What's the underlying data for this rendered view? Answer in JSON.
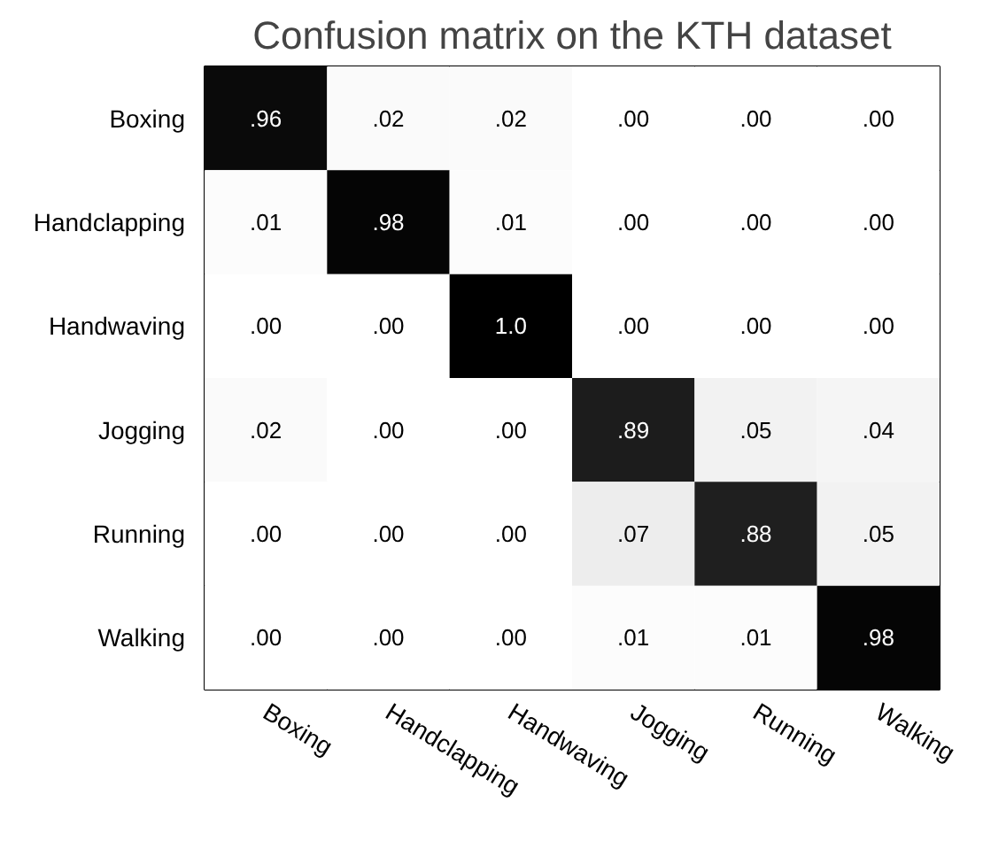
{
  "chart_data": {
    "type": "heatmap",
    "title": "Confusion matrix on the KTH dataset",
    "categories": [
      "Boxing",
      "Handclapping",
      "Handwaving",
      "Jogging",
      "Running",
      "Walking"
    ],
    "y_categories": [
      "Boxing",
      "Handclapping",
      "Handwaving",
      "Jogging",
      "Running",
      "Walking"
    ],
    "cells": [
      [
        0.96,
        0.02,
        0.02,
        0.0,
        0.0,
        0.0
      ],
      [
        0.01,
        0.98,
        0.01,
        0.0,
        0.0,
        0.0
      ],
      [
        0.0,
        0.0,
        1.0,
        0.0,
        0.0,
        0.0
      ],
      [
        0.02,
        0.0,
        0.0,
        0.89,
        0.05,
        0.04
      ],
      [
        0.0,
        0.0,
        0.0,
        0.07,
        0.88,
        0.05
      ],
      [
        0.0,
        0.0,
        0.0,
        0.01,
        0.01,
        0.98
      ]
    ],
    "cell_labels": [
      [
        ".96",
        ".02",
        ".02",
        ".00",
        ".00",
        ".00"
      ],
      [
        ".01",
        ".98",
        ".01",
        ".00",
        ".00",
        ".00"
      ],
      [
        ".00",
        ".00",
        "1.0",
        ".00",
        ".00",
        ".00"
      ],
      [
        ".02",
        ".00",
        ".00",
        ".89",
        ".05",
        ".04"
      ],
      [
        ".00",
        ".00",
        ".00",
        ".07",
        ".88",
        ".05"
      ],
      [
        ".00",
        ".00",
        ".00",
        ".01",
        ".01",
        ".98"
      ]
    ]
  }
}
